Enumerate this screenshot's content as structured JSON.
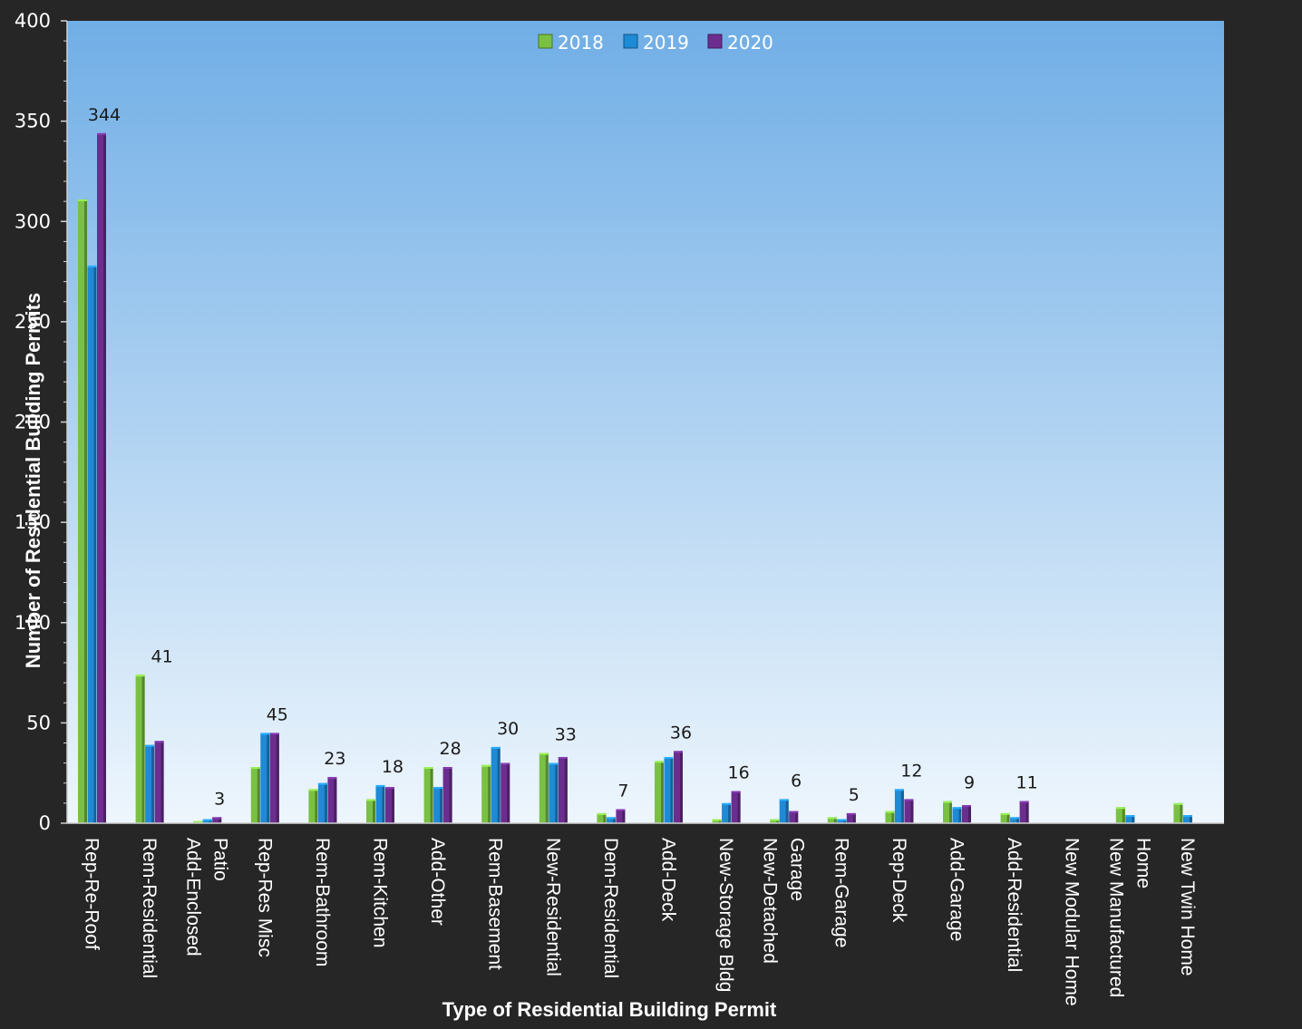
{
  "chart_data": {
    "type": "bar",
    "title": "",
    "xlabel": "Type of Residential Building Permit",
    "ylabel": "Number of Residential Building Permits",
    "ylim": [
      0,
      400
    ],
    "yticks": [
      0,
      50,
      100,
      150,
      200,
      250,
      300,
      350,
      400
    ],
    "grid": false,
    "legend_position": "top-center",
    "categories": [
      "Rep-Re-Roof",
      "Rem-Residential",
      "Add-Enclosed Patio",
      "Rep-Res Misc",
      "Rem-Bathroom",
      "Rem-Kitchen",
      "Add-Other",
      "Rem-Basement",
      "New-Residential",
      "Dem-Residential",
      "Add-Deck",
      "New-Storage Bldg",
      "New-Detached Garage",
      "Rem-Garage",
      "Rep-Deck",
      "Add-Garage",
      "Add-Residential",
      "New Modular Home",
      "New Manufactured Home",
      "New Twin Home"
    ],
    "series": [
      {
        "name": "2018",
        "color": "#7ac143",
        "values": [
          311,
          74,
          1,
          28,
          17,
          12,
          28,
          29,
          35,
          5,
          31,
          2,
          2,
          3,
          6,
          11,
          5,
          0,
          8,
          10
        ]
      },
      {
        "name": "2019",
        "color": "#1f8ad6",
        "values": [
          278,
          39,
          2,
          45,
          20,
          19,
          18,
          38,
          30,
          3,
          33,
          10,
          12,
          2,
          17,
          8,
          3,
          0,
          4,
          4
        ]
      },
      {
        "name": "2020",
        "color": "#6b2e8f",
        "values": [
          344,
          41,
          3,
          45,
          23,
          18,
          28,
          30,
          33,
          7,
          36,
          16,
          6,
          5,
          12,
          9,
          11,
          0,
          0,
          0
        ]
      }
    ],
    "data_labels": {
      "series": "2020",
      "values": [
        "344",
        "41",
        "3",
        "45",
        "23",
        "18",
        "28",
        "30",
        "33",
        "7",
        "36",
        "16",
        "6",
        "5",
        "12",
        "9",
        "11",
        "",
        "",
        ""
      ]
    }
  },
  "colors": {
    "frame": "#262626",
    "plot_top": "#70aee6",
    "plot_bottom": "#eef6fd",
    "axis_text": "#ffffff"
  }
}
